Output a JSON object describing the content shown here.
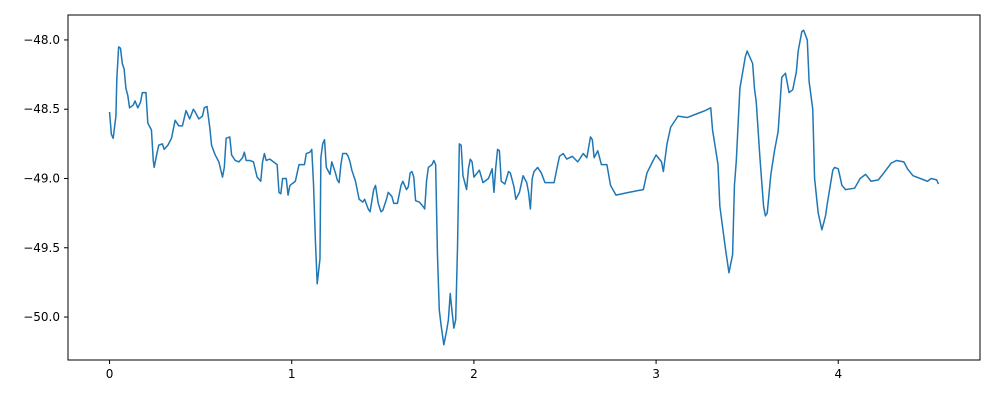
{
  "chart_data": {
    "type": "line",
    "color": "#1f77b4",
    "x": [
      0,
      0.01,
      0.02,
      0.035,
      0.04,
      0.05,
      0.06,
      0.07,
      0.08,
      0.09,
      0.1,
      0.11,
      0.13,
      0.14,
      0.155,
      0.17,
      0.18,
      0.2,
      0.21,
      0.23,
      0.24,
      0.245,
      0.26,
      0.27,
      0.29,
      0.3,
      0.32,
      0.34,
      0.36,
      0.38,
      0.4,
      0.42,
      0.44,
      0.46,
      0.47,
      0.49,
      0.51,
      0.52,
      0.535,
      0.55,
      0.56,
      0.58,
      0.6,
      0.62,
      0.63,
      0.64,
      0.66,
      0.67,
      0.69,
      0.71,
      0.73,
      0.74,
      0.75,
      0.77,
      0.79,
      0.81,
      0.83,
      0.84,
      0.85,
      0.86,
      0.88,
      0.9,
      0.92,
      0.93,
      0.94,
      0.95,
      0.97,
      0.98,
      0.99,
      1.02,
      1.03,
      1.04,
      1.07,
      1.08,
      1.1,
      1.11,
      1.12,
      1.13,
      1.14,
      1.155,
      1.16,
      1.17,
      1.18,
      1.19,
      1.21,
      1.22,
      1.24,
      1.25,
      1.26,
      1.27,
      1.28,
      1.3,
      1.31,
      1.32,
      1.33,
      1.35,
      1.37,
      1.39,
      1.4,
      1.42,
      1.43,
      1.45,
      1.46,
      1.475,
      1.49,
      1.5,
      1.52,
      1.53,
      1.55,
      1.56,
      1.58,
      1.6,
      1.61,
      1.63,
      1.64,
      1.65,
      1.66,
      1.67,
      1.68,
      1.7,
      1.72,
      1.73,
      1.74,
      1.75,
      1.77,
      1.78,
      1.79,
      1.8,
      1.81,
      1.82,
      1.835,
      1.85,
      1.86,
      1.87,
      1.88,
      1.89,
      1.9,
      1.91,
      1.92,
      1.93,
      1.94,
      1.96,
      1.97,
      1.98,
      1.99,
      2,
      2.03,
      2.05,
      2.08,
      2.1,
      2.11,
      2.12,
      2.13,
      2.14,
      2.15,
      2.17,
      2.19,
      2.2,
      2.22,
      2.23,
      2.25,
      2.27,
      2.29,
      2.3,
      2.31,
      2.32,
      2.33,
      2.35,
      2.37,
      2.39,
      2.42,
      2.44,
      2.46,
      2.47,
      2.49,
      2.51,
      2.54,
      2.57,
      2.6,
      2.62,
      2.64,
      2.65,
      2.66,
      2.68,
      2.7,
      2.73,
      2.75,
      2.78,
      2.85,
      2.93,
      2.95,
      2.98,
      3,
      3.03,
      3.04,
      3.06,
      3.08,
      3.12,
      3.17,
      3.23,
      3.27,
      3.3,
      3.31,
      3.34,
      3.35,
      3.38,
      3.4,
      3.42,
      3.43,
      3.44,
      3.46,
      3.49,
      3.5,
      3.53,
      3.54,
      3.55,
      3.57,
      3.59,
      3.6,
      3.61,
      3.63,
      3.65,
      3.67,
      3.69,
      3.71,
      3.73,
      3.75,
      3.77,
      3.78,
      3.8,
      3.81,
      3.83,
      3.84,
      3.86,
      3.87,
      3.89,
      3.91,
      3.93,
      3.94,
      3.97,
      3.98,
      4,
      4.02,
      4.04,
      4.09,
      4.12,
      4.15,
      4.18,
      4.22,
      4.25,
      4.29,
      4.32,
      4.36,
      4.38,
      4.41,
      4.47,
      4.49,
      4.51,
      4.54,
      4.55
    ],
    "values": [
      -48.52,
      -48.68,
      -48.71,
      -48.55,
      -48.28,
      -48.05,
      -48.06,
      -48.17,
      -48.21,
      -48.35,
      -48.4,
      -48.49,
      -48.47,
      -48.44,
      -48.49,
      -48.45,
      -48.38,
      -48.38,
      -48.6,
      -48.65,
      -48.87,
      -48.92,
      -48.82,
      -48.76,
      -48.75,
      -48.79,
      -48.76,
      -48.71,
      -48.58,
      -48.62,
      -48.62,
      -48.51,
      -48.57,
      -48.5,
      -48.52,
      -48.57,
      -48.55,
      -48.49,
      -48.48,
      -48.63,
      -48.76,
      -48.83,
      -48.88,
      -48.99,
      -48.92,
      -48.71,
      -48.7,
      -48.83,
      -48.87,
      -48.88,
      -48.85,
      -48.81,
      -48.87,
      -48.87,
      -48.88,
      -48.99,
      -49.02,
      -48.88,
      -48.82,
      -48.87,
      -48.86,
      -48.88,
      -48.9,
      -49.1,
      -49.11,
      -49,
      -49,
      -49.12,
      -49.05,
      -49.02,
      -48.96,
      -48.9,
      -48.9,
      -48.82,
      -48.81,
      -48.79,
      -49.05,
      -49.45,
      -49.76,
      -49.58,
      -48.85,
      -48.75,
      -48.72,
      -48.92,
      -48.97,
      -48.88,
      -48.96,
      -49.01,
      -49.03,
      -48.9,
      -48.82,
      -48.82,
      -48.84,
      -48.88,
      -48.94,
      -49.02,
      -49.15,
      -49.17,
      -49.15,
      -49.22,
      -49.24,
      -49.08,
      -49.05,
      -49.18,
      -49.24,
      -49.23,
      -49.15,
      -49.1,
      -49.13,
      -49.18,
      -49.18,
      -49.05,
      -49.02,
      -49.08,
      -49.06,
      -48.96,
      -48.95,
      -48.99,
      -49.16,
      -49.17,
      -49.2,
      -49.22,
      -49.02,
      -48.92,
      -48.9,
      -48.87,
      -48.9,
      -49.55,
      -49.95,
      -50.06,
      -50.2,
      -50.1,
      -50.02,
      -49.83,
      -49.96,
      -50.08,
      -50.02,
      -49.5,
      -48.75,
      -48.76,
      -48.98,
      -49.08,
      -48.93,
      -48.86,
      -48.88,
      -48.99,
      -48.94,
      -49.03,
      -49,
      -48.93,
      -49.1,
      -48.92,
      -48.79,
      -48.8,
      -49.02,
      -49.04,
      -48.95,
      -48.96,
      -49.06,
      -49.15,
      -49.1,
      -48.98,
      -49.03,
      -49.1,
      -49.22,
      -49,
      -48.95,
      -48.92,
      -48.96,
      -49.03,
      -49.03,
      -49.03,
      -48.9,
      -48.84,
      -48.82,
      -48.86,
      -48.84,
      -48.88,
      -48.82,
      -48.85,
      -48.7,
      -48.72,
      -48.85,
      -48.8,
      -48.9,
      -48.9,
      -49.05,
      -49.12,
      -49.1,
      -49.08,
      -48.96,
      -48.88,
      -48.83,
      -48.88,
      -48.95,
      -48.75,
      -48.63,
      -48.55,
      -48.56,
      -48.53,
      -48.51,
      -48.49,
      -48.65,
      -48.9,
      -49.2,
      -49.5,
      -49.68,
      -49.55,
      -49.05,
      -48.88,
      -48.35,
      -48.12,
      -48.08,
      -48.17,
      -48.35,
      -48.45,
      -48.85,
      -49.2,
      -49.27,
      -49.25,
      -48.97,
      -48.8,
      -48.66,
      -48.27,
      -48.24,
      -48.38,
      -48.36,
      -48.23,
      -48.08,
      -47.94,
      -47.93,
      -48,
      -48.3,
      -48.5,
      -49,
      -49.25,
      -49.37,
      -49.27,
      -49.18,
      -48.94,
      -48.92,
      -48.93,
      -49.05,
      -49.08,
      -49.07,
      -49,
      -48.97,
      -49.02,
      -49.01,
      -48.96,
      -48.89,
      -48.87,
      -48.88,
      -48.93,
      -48.98,
      -49.01,
      -49.02,
      -49,
      -49.01,
      -49.04
    ],
    "xlim": [
      -0.228,
      4.778
    ],
    "ylim": [
      -50.31,
      -47.82
    ],
    "xticks": [
      0,
      1,
      2,
      3,
      4
    ],
    "yticks": [
      {
        "value": -50,
        "label": "−50.0"
      },
      {
        "value": -49.5,
        "label": "−49.5"
      },
      {
        "value": -49,
        "label": "−49.0"
      },
      {
        "value": -48.5,
        "label": "−48.5"
      },
      {
        "value": -48,
        "label": "−48.0"
      }
    ]
  }
}
